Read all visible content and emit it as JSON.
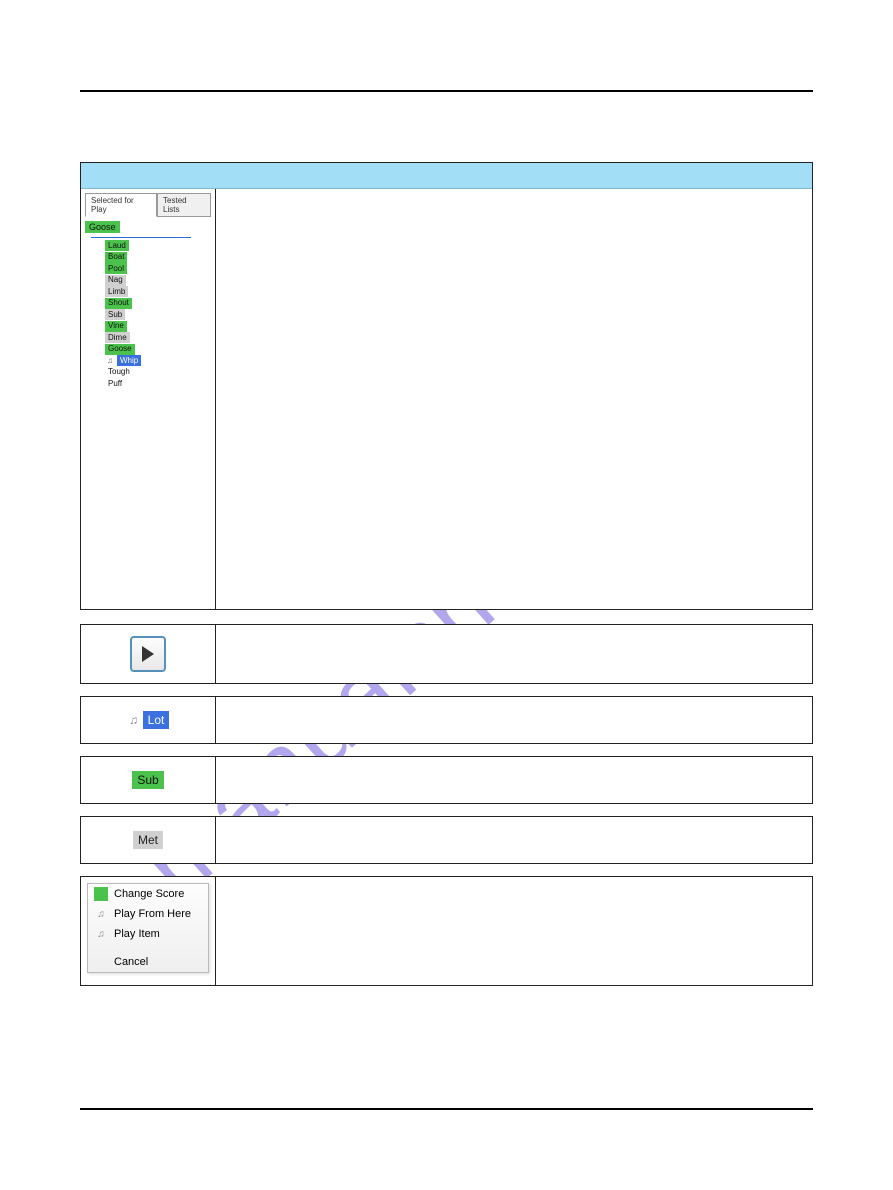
{
  "watermark": "manualshive.com",
  "titlebar_color": "#a2dff6",
  "tabs": {
    "selected_for_play": "Selected for Play",
    "tested_lists": "Tested Lists"
  },
  "tree": {
    "root": "Goose",
    "items": [
      {
        "label": "Laud",
        "bg": "bg-green",
        "icon": false
      },
      {
        "label": "Boat",
        "bg": "bg-green",
        "icon": false
      },
      {
        "label": "Pool",
        "bg": "bg-green",
        "icon": false
      },
      {
        "label": "Nag",
        "bg": "bg-gray",
        "icon": false
      },
      {
        "label": "Limb",
        "bg": "bg-gray",
        "icon": false
      },
      {
        "label": "Shout",
        "bg": "bg-green",
        "icon": false
      },
      {
        "label": "Sub",
        "bg": "bg-gray",
        "icon": false
      },
      {
        "label": "Vine",
        "bg": "bg-green",
        "icon": false
      },
      {
        "label": "Dime",
        "bg": "bg-gray",
        "icon": false
      },
      {
        "label": "Goose",
        "bg": "bg-green",
        "icon": false
      },
      {
        "label": "Whip",
        "bg": "bg-blue",
        "icon": true
      },
      {
        "label": "Tough",
        "bg": "",
        "icon": false
      },
      {
        "label": "Puff",
        "bg": "",
        "icon": false
      }
    ]
  },
  "rows": {
    "lot": {
      "label": "Lot",
      "chip_class": "chip-blue",
      "icon": true
    },
    "sub": {
      "label": "Sub",
      "chip_class": "chip-green",
      "icon": false
    },
    "met": {
      "label": "Met",
      "chip_class": "chip-gray",
      "icon": false
    }
  },
  "context_menu": {
    "change_score": "Change Score",
    "play_from_here": "Play From Here",
    "play_item": "Play Item",
    "cancel": "Cancel"
  }
}
